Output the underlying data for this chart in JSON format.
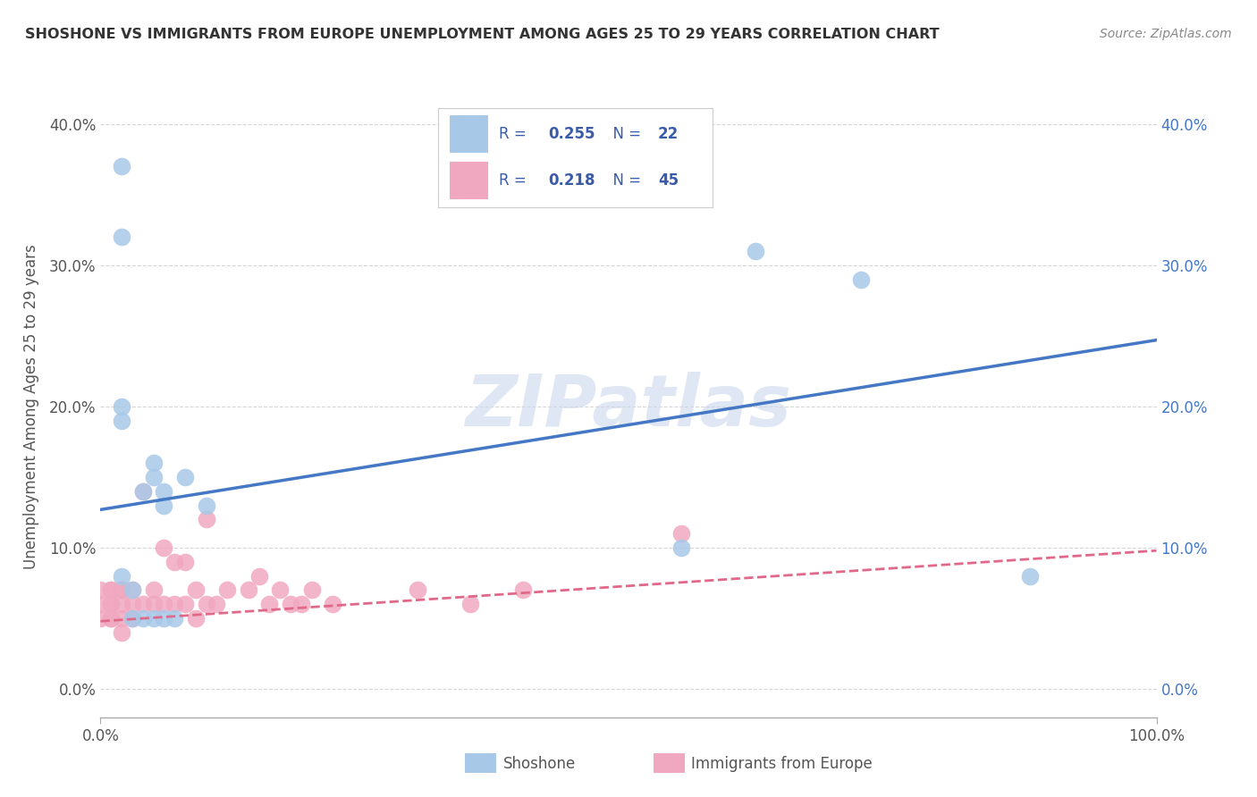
{
  "title": "SHOSHONE VS IMMIGRANTS FROM EUROPE UNEMPLOYMENT AMONG AGES 25 TO 29 YEARS CORRELATION CHART",
  "source": "Source: ZipAtlas.com",
  "ylabel": "Unemployment Among Ages 25 to 29 years",
  "xlim": [
    0.0,
    1.0
  ],
  "ylim": [
    -0.02,
    0.42
  ],
  "xtick_positions": [
    0.0,
    1.0
  ],
  "xtick_labels": [
    "0.0%",
    "100.0%"
  ],
  "yticks": [
    0.0,
    0.1,
    0.2,
    0.3,
    0.4
  ],
  "ytick_labels": [
    "0.0%",
    "10.0%",
    "20.0%",
    "30.0%",
    "40.0%"
  ],
  "shoshone_R": 0.255,
  "shoshone_N": 22,
  "europe_R": 0.218,
  "europe_N": 45,
  "shoshone_color": "#a8c8e8",
  "europe_color": "#f0a8c0",
  "shoshone_line_color": "#4478c4",
  "europe_line_color": "#e06888",
  "legend_text_color": "#3a5aaa",
  "watermark_color": "#ccd8ee",
  "background_color": "#ffffff",
  "grid_color": "#cccccc",
  "title_color": "#333333",
  "source_color": "#888888",
  "ylabel_color": "#555555",
  "tick_color_left": "#555555",
  "tick_color_right": "#4478c4",
  "shoshone_x": [
    0.02,
    0.02,
    0.02,
    0.02,
    0.02,
    0.03,
    0.03,
    0.04,
    0.04,
    0.05,
    0.05,
    0.05,
    0.06,
    0.06,
    0.06,
    0.07,
    0.08,
    0.1,
    0.55,
    0.62,
    0.72,
    0.88
  ],
  "shoshone_y": [
    0.37,
    0.32,
    0.2,
    0.19,
    0.08,
    0.07,
    0.05,
    0.05,
    0.14,
    0.15,
    0.16,
    0.05,
    0.13,
    0.14,
    0.05,
    0.05,
    0.15,
    0.13,
    0.1,
    0.31,
    0.29,
    0.08
  ],
  "europe_x": [
    0.0,
    0.0,
    0.0,
    0.01,
    0.01,
    0.01,
    0.01,
    0.01,
    0.01,
    0.02,
    0.02,
    0.02,
    0.02,
    0.02,
    0.03,
    0.03,
    0.03,
    0.04,
    0.04,
    0.05,
    0.05,
    0.06,
    0.06,
    0.07,
    0.07,
    0.08,
    0.08,
    0.09,
    0.09,
    0.1,
    0.1,
    0.11,
    0.12,
    0.14,
    0.15,
    0.16,
    0.17,
    0.18,
    0.19,
    0.2,
    0.22,
    0.3,
    0.35,
    0.4,
    0.55
  ],
  "europe_y": [
    0.07,
    0.06,
    0.05,
    0.07,
    0.07,
    0.06,
    0.06,
    0.05,
    0.05,
    0.07,
    0.07,
    0.06,
    0.05,
    0.04,
    0.07,
    0.06,
    0.05,
    0.14,
    0.06,
    0.07,
    0.06,
    0.1,
    0.06,
    0.09,
    0.06,
    0.09,
    0.06,
    0.07,
    0.05,
    0.12,
    0.06,
    0.06,
    0.07,
    0.07,
    0.08,
    0.06,
    0.07,
    0.06,
    0.06,
    0.07,
    0.06,
    0.07,
    0.06,
    0.07,
    0.11
  ],
  "shoshone_trend_x": [
    0.0,
    1.0
  ],
  "shoshone_trend_y": [
    0.127,
    0.247
  ],
  "europe_trend_x": [
    0.0,
    1.0
  ],
  "europe_trend_y": [
    0.048,
    0.098
  ]
}
